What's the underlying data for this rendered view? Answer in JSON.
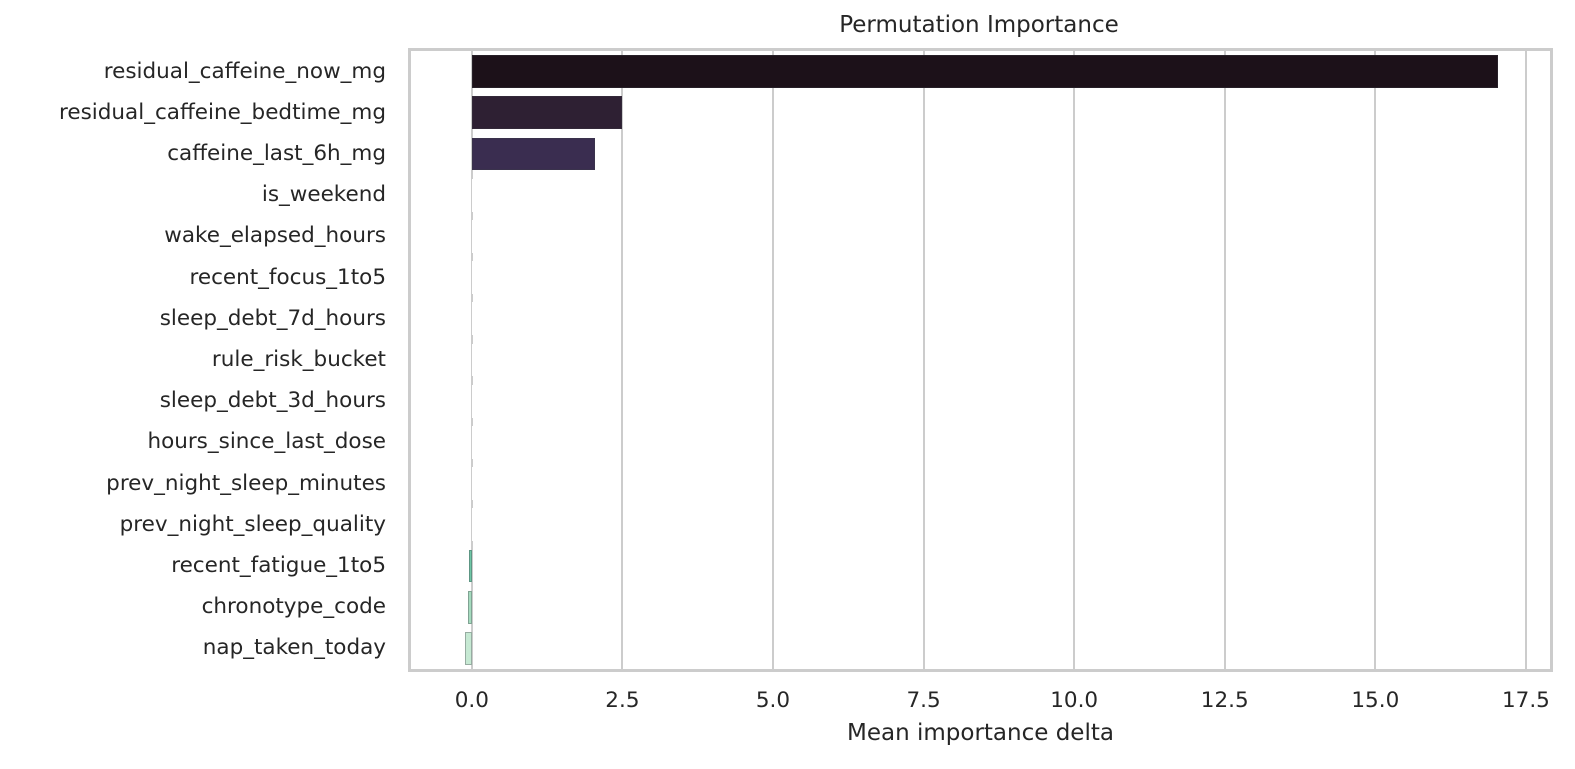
{
  "chart_data": {
    "type": "bar",
    "orientation": "horizontal",
    "title": "Permutation Importance",
    "xlabel": "Mean importance delta",
    "ylabel": "",
    "xlim": [
      -1.01,
      17.9
    ],
    "xticks": [
      0.0,
      2.5,
      5.0,
      7.5,
      10.0,
      12.5,
      15.0,
      17.5
    ],
    "xtick_labels": [
      "0.0",
      "2.5",
      "5.0",
      "7.5",
      "10.0",
      "12.5",
      "15.0",
      "17.5"
    ],
    "grid": true,
    "legend": null,
    "categories": [
      "residual_caffeine_now_mg",
      "residual_caffeine_bedtime_mg",
      "caffeine_last_6h_mg",
      "is_weekend",
      "wake_elapsed_hours",
      "recent_focus_1to5",
      "sleep_debt_7d_hours",
      "rule_risk_bucket",
      "sleep_debt_3d_hours",
      "hours_since_last_dose",
      "prev_night_sleep_minutes",
      "prev_night_sleep_quality",
      "recent_fatigue_1to5",
      "chronotype_code",
      "nap_taken_today"
    ],
    "values": [
      17.03,
      2.5,
      2.05,
      0.0,
      0.0,
      0.0,
      0.0,
      0.0,
      0.0,
      0.0,
      0.0,
      0.0,
      -0.05,
      -0.06,
      -0.12
    ],
    "colors": [
      "#1c1119",
      "#2e2033",
      "#3a2d50",
      "#ffffff",
      "#ffffff",
      "#ffffff",
      "#ffffff",
      "#ffffff",
      "#ffffff",
      "#ffffff",
      "#ffffff",
      "#ffffff",
      "#6fc7a6",
      "#a5dbbe",
      "#c6e9d3"
    ]
  }
}
